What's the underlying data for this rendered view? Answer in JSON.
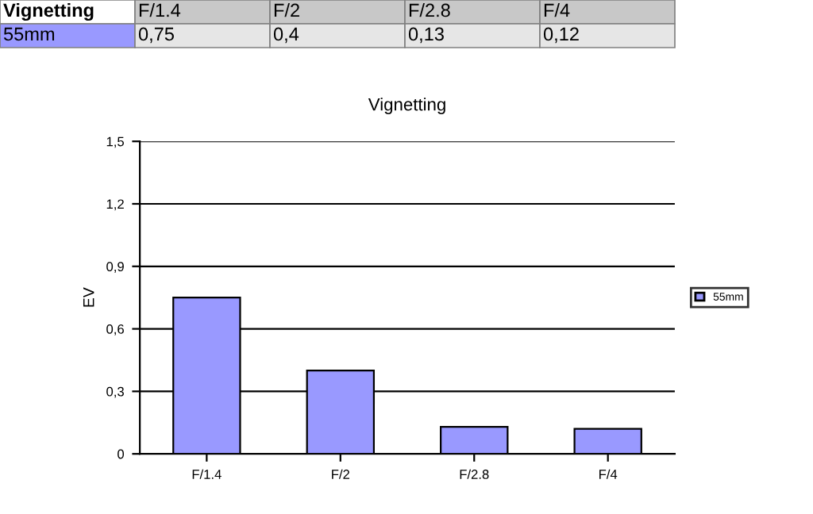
{
  "chart_data": {
    "type": "bar",
    "title": "Vignetting",
    "ylabel": "EV",
    "categories": [
      "F/1.4",
      "F/2",
      "F/2.8",
      "F/4"
    ],
    "series": [
      {
        "name": "55mm",
        "color": "#9999ff",
        "values": [
          0.75,
          0.4,
          0.13,
          0.12
        ],
        "value_labels": [
          "0,75",
          "0,4",
          "0,13",
          "0,12"
        ]
      }
    ],
    "annotations": [
      "Vignetting"
    ],
    "ylim": [
      0,
      1.5
    ],
    "yticks": [
      0,
      {
        "value": 0.3,
        "label": "0,3"
      },
      {
        "value": 0.6,
        "label": "0,6"
      },
      {
        "value": 0.9,
        "label": "0,9"
      },
      {
        "value": 1.2,
        "label": "1,2"
      },
      {
        "value": 1.5,
        "label": "1,5"
      }
    ],
    "grid": "y",
    "legend": "right"
  }
}
